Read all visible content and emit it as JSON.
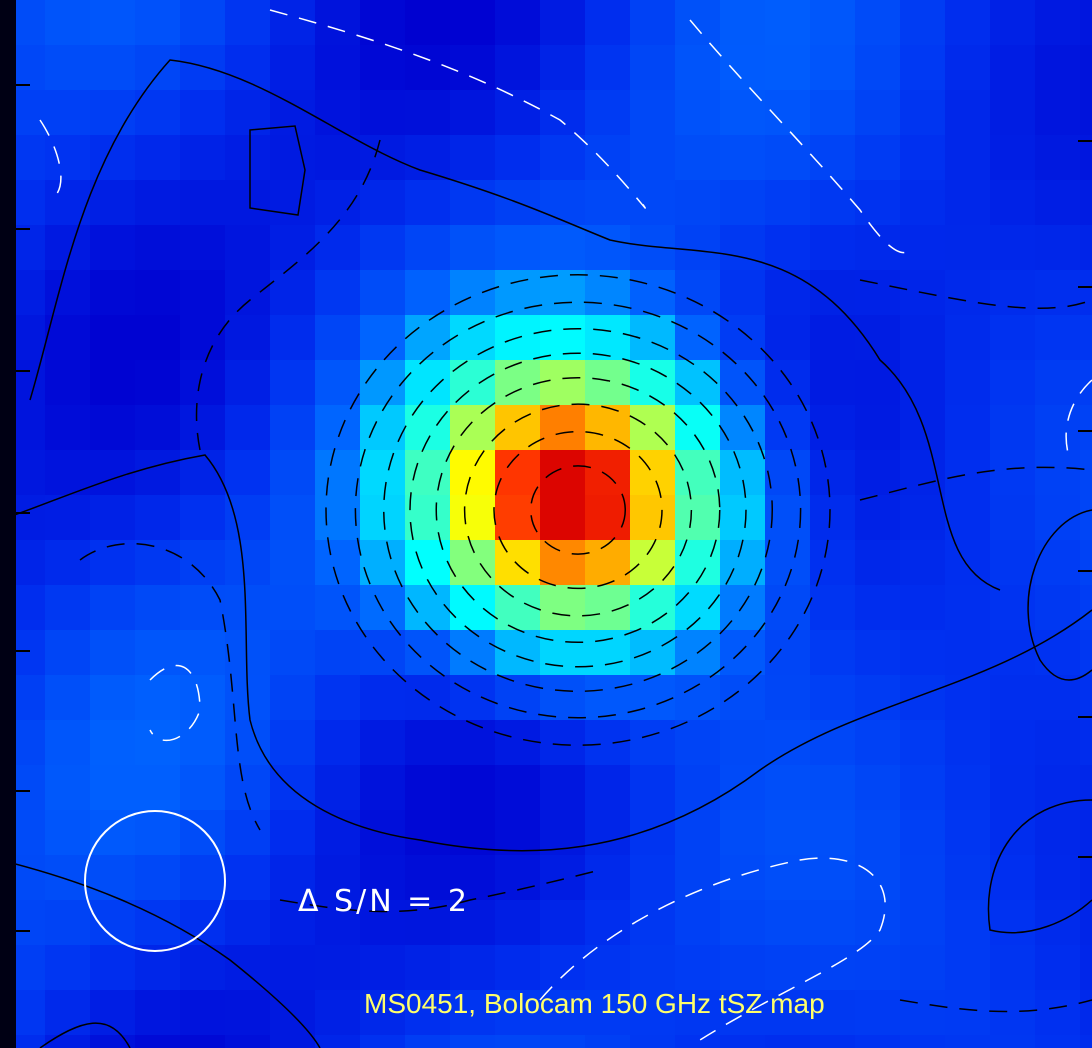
{
  "figure": {
    "title": "MS0451, Bolocam 150 GHz tSZ map",
    "contour_step_label": "Δ S/N = 2",
    "title_color": "#ffff6a",
    "label_color": "#ffffff",
    "beam_color": "#ffffff",
    "colormap": "jet",
    "colormap_colors": [
      "#000090",
      "#0000d0",
      "#0030f0",
      "#0064ff",
      "#00c8ff",
      "#00ffff",
      "#40ffc0",
      "#a0ff60",
      "#ffff00",
      "#ffa000",
      "#ff3000",
      "#d80000"
    ],
    "contour_styles": {
      "negative_and_zero_offset": "dashed",
      "baseline": "solid"
    }
  }
}
